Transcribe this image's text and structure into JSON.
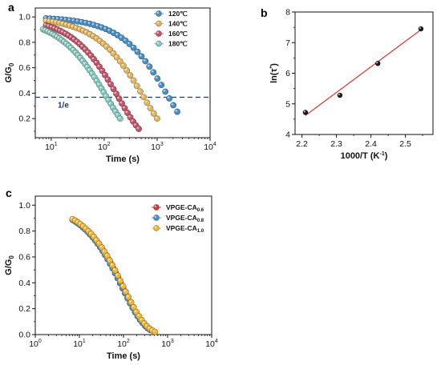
{
  "chart_data": [
    {
      "panel": "a",
      "type": "scatter",
      "xscale": "log",
      "xlabel": "Time (s)",
      "ylabel_main": "G/G",
      "ylabel_sub": "0",
      "xlim": [
        5,
        10000
      ],
      "ylim": [
        0.05,
        1.07
      ],
      "xticks": [
        {
          "v": 10,
          "b": "10",
          "e": "1"
        },
        {
          "v": 100,
          "b": "10",
          "e": "2"
        },
        {
          "v": 1000,
          "b": "10",
          "e": "3"
        },
        {
          "v": 10000,
          "b": "10",
          "e": "4"
        }
      ],
      "yticks": [
        {
          "v": 0.2,
          "label": "0.2"
        },
        {
          "v": 0.4,
          "label": "0.4"
        },
        {
          "v": 0.6,
          "label": "0.6"
        },
        {
          "v": 0.8,
          "label": "0.8"
        },
        {
          "v": 1.0,
          "label": "1.0"
        }
      ],
      "hline": {
        "y": 0.368,
        "label": "1/e",
        "color": "#1f2f8a"
      },
      "legend_position": "top-right",
      "series": [
        {
          "name": "120℃",
          "color": "#4a8fc4",
          "tau": 1650,
          "beta": 0.84,
          "x0": 8,
          "x1": 2400
        },
        {
          "name": "140℃",
          "color": "#e1b55f",
          "tau": 560,
          "beta": 0.82,
          "x0": 8,
          "x1": 1000
        },
        {
          "name": "160℃",
          "color": "#c3566a",
          "tau": 185,
          "beta": 0.85,
          "x0": 8,
          "x1": 450
        },
        {
          "name": "180℃",
          "color": "#86cbbe",
          "tau": 112,
          "beta": 0.82,
          "x0": 7,
          "x1": 200
        }
      ]
    },
    {
      "panel": "b",
      "type": "scatter",
      "xlabel_main": "1000/T (K",
      "xlabel_sup": "-1",
      "xlabel_end": ")",
      "ylabel_main": "ln(τ",
      "ylabel_sup": "*",
      "ylabel_end": ")",
      "xlim": [
        2.18,
        2.58
      ],
      "ylim": [
        4,
        8
      ],
      "xticks": [
        {
          "v": 2.2,
          "label": "2.2"
        },
        {
          "v": 2.3,
          "label": "2.3"
        },
        {
          "v": 2.4,
          "label": "2.4"
        },
        {
          "v": 2.5,
          "label": "2.5"
        }
      ],
      "yticks": [
        {
          "v": 4,
          "label": "4"
        },
        {
          "v": 5,
          "label": "5"
        },
        {
          "v": 6,
          "label": "6"
        },
        {
          "v": 7,
          "label": "7"
        },
        {
          "v": 8,
          "label": "8"
        }
      ],
      "points": [
        {
          "x": 2.21,
          "y": 4.72
        },
        {
          "x": 2.31,
          "y": 5.28
        },
        {
          "x": 2.42,
          "y": 6.32
        },
        {
          "x": 2.545,
          "y": 7.45
        }
      ],
      "fit": {
        "x": [
          2.21,
          2.545
        ],
        "y": [
          4.62,
          7.42
        ],
        "color": "#d9342b"
      }
    },
    {
      "panel": "c",
      "type": "scatter",
      "xscale": "log",
      "xlabel": "Time (s)",
      "ylabel_main": "G/G",
      "ylabel_sub": "0",
      "xlim": [
        1,
        10000
      ],
      "ylim": [
        0,
        1.07
      ],
      "xticks": [
        {
          "v": 1,
          "b": "10",
          "e": "0"
        },
        {
          "v": 10,
          "b": "10",
          "e": "1"
        },
        {
          "v": 100,
          "b": "10",
          "e": "2"
        },
        {
          "v": 1000,
          "b": "10",
          "e": "3"
        },
        {
          "v": 10000,
          "b": "10",
          "e": "4"
        }
      ],
      "yticks": [
        {
          "v": 0.0,
          "label": "0.0"
        },
        {
          "v": 0.2,
          "label": "0.2"
        },
        {
          "v": 0.4,
          "label": "0.4"
        },
        {
          "v": 0.6,
          "label": "0.6"
        },
        {
          "v": 0.8,
          "label": "0.8"
        },
        {
          "v": 1.0,
          "label": "1.0"
        }
      ],
      "legend_position": "top-right",
      "series": [
        {
          "name_main": "VPGE-CA",
          "name_sub": "0.6",
          "color": "#d33b2c",
          "tau": 96,
          "beta": 0.82,
          "x0": 7,
          "x1": 420
        },
        {
          "name_main": "VPGE-CA",
          "name_sub": "0.8",
          "color": "#4a8fc4",
          "tau": 92,
          "beta": 0.82,
          "x0": 7,
          "x1": 400
        },
        {
          "name_main": "VPGE-CA",
          "name_sub": "1.0",
          "color": "#f3b736",
          "tau": 100,
          "beta": 0.82,
          "x0": 7,
          "x1": 520
        }
      ]
    }
  ]
}
